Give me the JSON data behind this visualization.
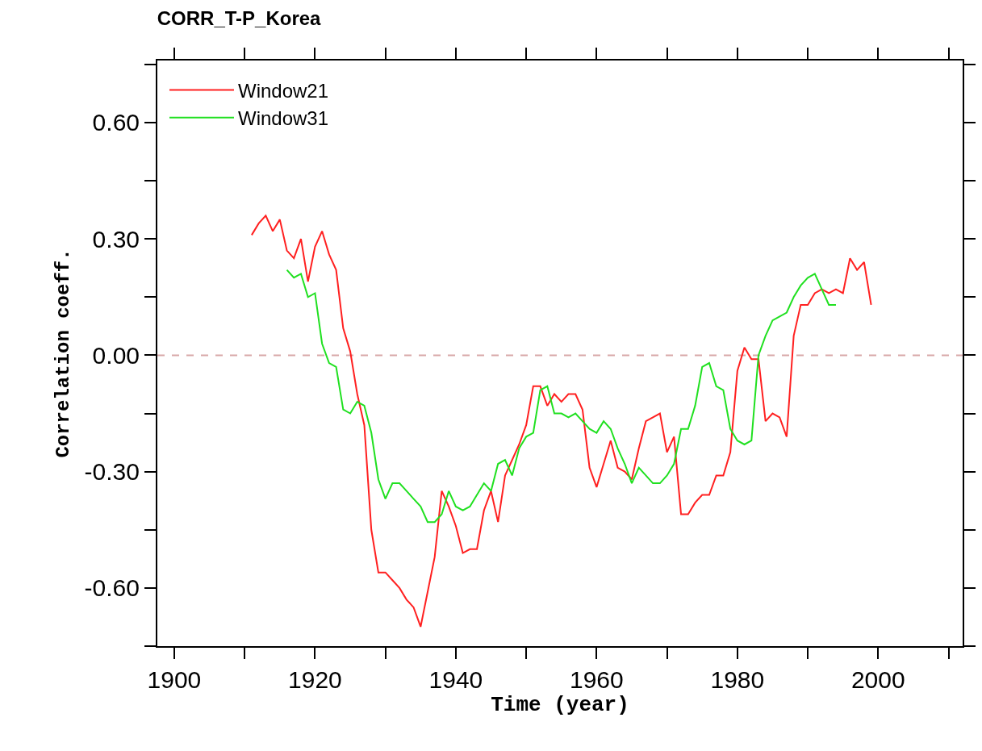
{
  "chart_data": {
    "type": "line",
    "title": "CORR_T-P_Korea",
    "xlabel": "Time (year)",
    "ylabel": "Correlation coeff.",
    "xlim": [
      1897.6,
      2012
    ],
    "ylim": [
      -0.75,
      0.76
    ],
    "xticks": [
      1900,
      {
        "value": 1910,
        "label": null
      },
      1920,
      {
        "value": 1930,
        "label": null
      },
      1940,
      {
        "value": 1950,
        "label": null
      },
      1960,
      {
        "value": 1970,
        "label": null
      },
      1980,
      {
        "value": 1990,
        "label": null
      },
      2000,
      {
        "value": 2010,
        "label": null
      }
    ],
    "yticks": [
      {
        "value": -0.75,
        "label": null
      },
      {
        "value": -0.6,
        "label": "-0.60"
      },
      {
        "value": -0.45,
        "label": null
      },
      {
        "value": -0.3,
        "label": "-0.30"
      },
      {
        "value": -0.15,
        "label": null
      },
      {
        "value": 0,
        "label": "0.00"
      },
      {
        "value": 0.15,
        "label": null
      },
      {
        "value": 0.3,
        "label": "0.30"
      },
      {
        "value": 0.45,
        "label": null
      },
      {
        "value": 0.6,
        "label": "0.60"
      },
      {
        "value": 0.75,
        "label": null
      }
    ],
    "grid": false,
    "legend": "top left",
    "line_style": "solid",
    "marker": "none",
    "ref_lines": [
      {
        "axis": "y",
        "value": 0,
        "color": "#d8a8a8",
        "line_style": "dashed"
      }
    ],
    "series": [
      {
        "name": "Window21",
        "color": "#ff2020",
        "x": [
          1911,
          1912,
          1913,
          1914,
          1915,
          1916,
          1917,
          1918,
          1919,
          1920,
          1921,
          1922,
          1923,
          1924,
          1925,
          1926,
          1927,
          1928,
          1929,
          1930,
          1931,
          1932,
          1933,
          1934,
          1935,
          1936,
          1937,
          1938,
          1939,
          1940,
          1941,
          1942,
          1943,
          1944,
          1945,
          1946,
          1947,
          1948,
          1949,
          1950,
          1951,
          1952,
          1953,
          1954,
          1955,
          1956,
          1957,
          1958,
          1959,
          1960,
          1961,
          1962,
          1963,
          1964,
          1965,
          1966,
          1967,
          1968,
          1969,
          1970,
          1971,
          1972,
          1973,
          1974,
          1975,
          1976,
          1977,
          1978,
          1979,
          1980,
          1981,
          1982,
          1983,
          1984,
          1985,
          1986,
          1987,
          1988,
          1989,
          1990,
          1991,
          1992,
          1993,
          1994,
          1995,
          1996,
          1997,
          1998,
          1999
        ],
        "values": [
          0.31,
          0.34,
          0.36,
          0.32,
          0.35,
          0.27,
          0.25,
          0.3,
          0.19,
          0.28,
          0.32,
          0.26,
          0.22,
          0.07,
          0.01,
          -0.1,
          -0.18,
          -0.45,
          -0.56,
          -0.56,
          -0.58,
          -0.6,
          -0.63,
          -0.65,
          -0.7,
          -0.61,
          -0.52,
          -0.35,
          -0.39,
          -0.44,
          -0.51,
          -0.5,
          -0.5,
          -0.4,
          -0.35,
          -0.43,
          -0.31,
          -0.27,
          -0.23,
          -0.18,
          -0.08,
          -0.08,
          -0.13,
          -0.1,
          -0.12,
          -0.1,
          -0.1,
          -0.14,
          -0.29,
          -0.34,
          -0.28,
          -0.22,
          -0.29,
          -0.3,
          -0.32,
          -0.24,
          -0.17,
          -0.16,
          -0.15,
          -0.25,
          -0.21,
          -0.41,
          -0.41,
          -0.38,
          -0.36,
          -0.36,
          -0.31,
          -0.31,
          -0.25,
          -0.04,
          0.02,
          -0.01,
          -0.01,
          -0.17,
          -0.15,
          -0.16,
          -0.21,
          0.05,
          0.13,
          0.13,
          0.16,
          0.17,
          0.16,
          0.17,
          0.16,
          0.25,
          0.22,
          0.24,
          0.13
        ]
      },
      {
        "name": "Window31",
        "color": "#20e020",
        "x": [
          1916,
          1917,
          1918,
          1919,
          1920,
          1921,
          1922,
          1923,
          1924,
          1925,
          1926,
          1927,
          1928,
          1929,
          1930,
          1931,
          1932,
          1933,
          1934,
          1935,
          1936,
          1937,
          1938,
          1939,
          1940,
          1941,
          1942,
          1943,
          1944,
          1945,
          1946,
          1947,
          1948,
          1949,
          1950,
          1951,
          1952,
          1953,
          1954,
          1955,
          1956,
          1957,
          1958,
          1959,
          1960,
          1961,
          1962,
          1963,
          1964,
          1965,
          1966,
          1967,
          1968,
          1969,
          1970,
          1971,
          1972,
          1973,
          1974,
          1975,
          1976,
          1977,
          1978,
          1979,
          1980,
          1981,
          1982,
          1983,
          1984,
          1985,
          1986,
          1987,
          1988,
          1989,
          1990,
          1991,
          1992,
          1993,
          1994
        ],
        "values": [
          0.22,
          0.2,
          0.21,
          0.15,
          0.16,
          0.03,
          -0.02,
          -0.03,
          -0.14,
          -0.15,
          -0.12,
          -0.13,
          -0.2,
          -0.32,
          -0.37,
          -0.33,
          -0.33,
          -0.35,
          -0.37,
          -0.39,
          -0.43,
          -0.43,
          -0.41,
          -0.35,
          -0.39,
          -0.4,
          -0.39,
          -0.36,
          -0.33,
          -0.35,
          -0.28,
          -0.27,
          -0.31,
          -0.24,
          -0.21,
          -0.2,
          -0.09,
          -0.08,
          -0.15,
          -0.15,
          -0.16,
          -0.15,
          -0.17,
          -0.19,
          -0.2,
          -0.17,
          -0.19,
          -0.24,
          -0.28,
          -0.33,
          -0.29,
          -0.31,
          -0.33,
          -0.33,
          -0.31,
          -0.28,
          -0.19,
          -0.19,
          -0.13,
          -0.03,
          -0.02,
          -0.08,
          -0.09,
          -0.19,
          -0.22,
          -0.23,
          -0.22,
          0.0,
          0.05,
          0.09,
          0.1,
          0.11,
          0.15,
          0.18,
          0.2,
          0.21,
          0.17,
          0.13,
          0.13
        ]
      }
    ]
  }
}
